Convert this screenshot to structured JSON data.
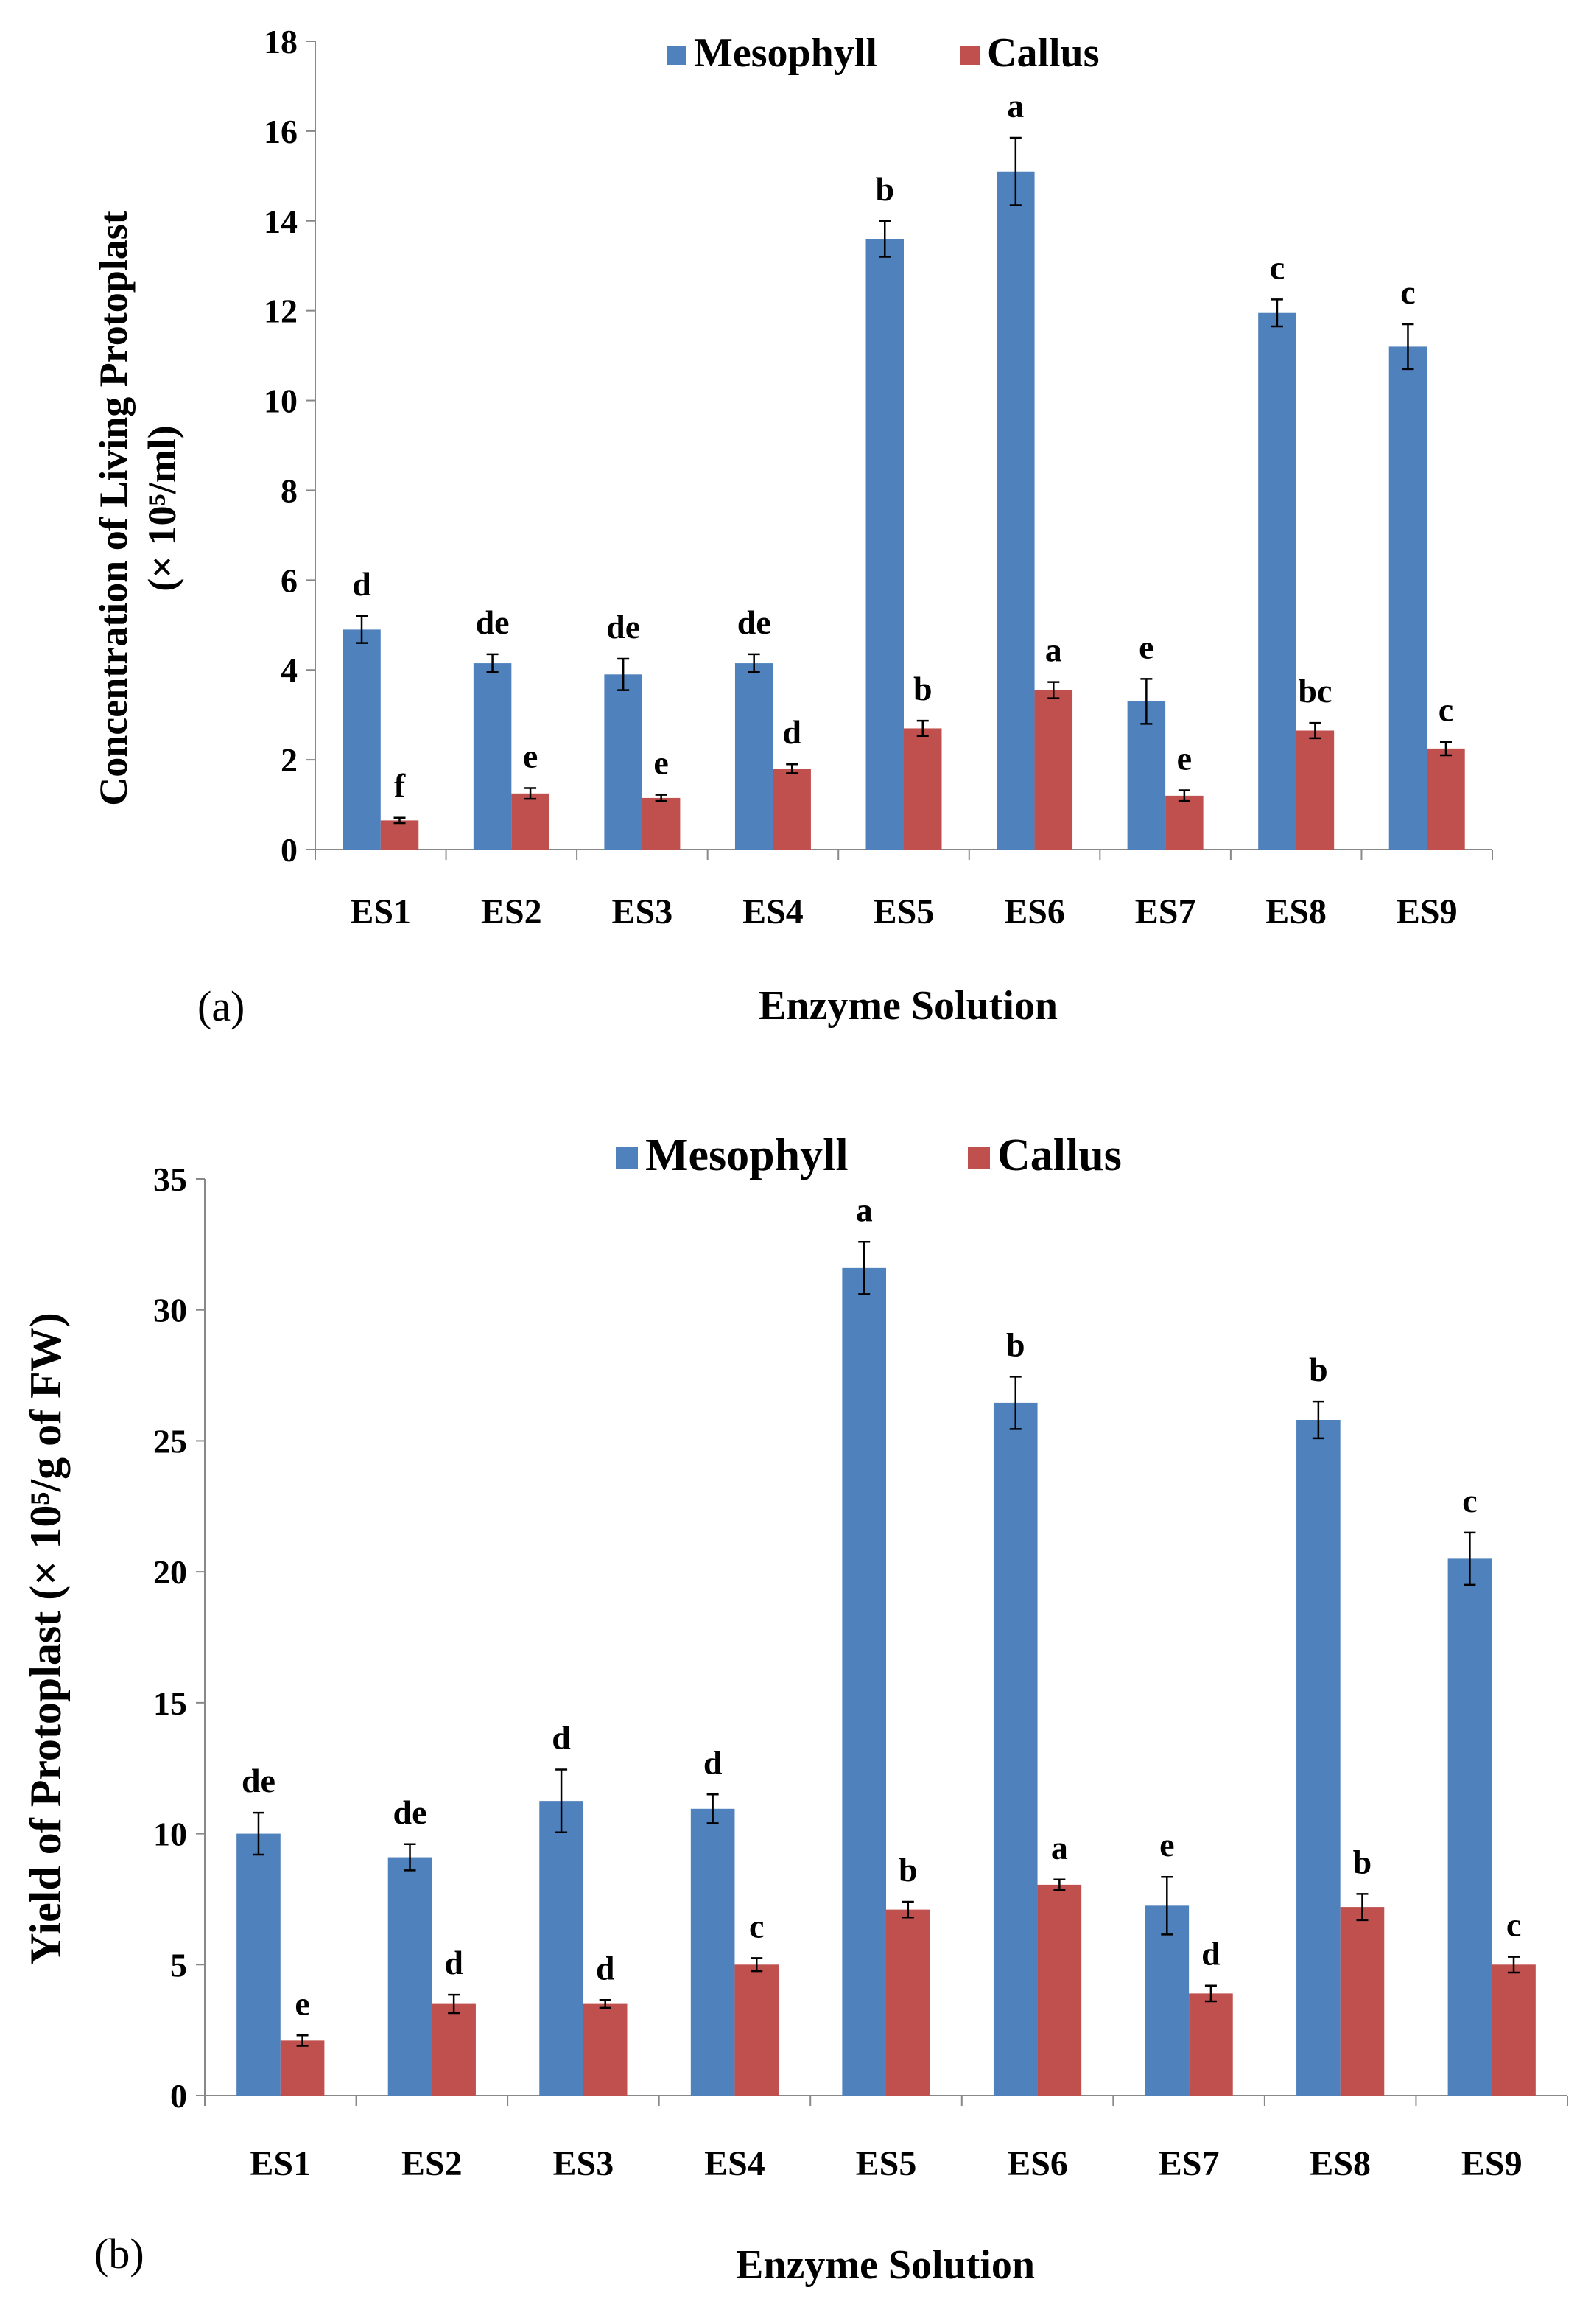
{
  "chart_data": [
    {
      "type": "bar",
      "panel_label": "(a)",
      "categories": [
        "ES1",
        "ES2",
        "ES3",
        "ES4",
        "ES5",
        "ES6",
        "ES7",
        "ES8",
        "ES9"
      ],
      "series": [
        {
          "name": "Mesophyll",
          "color": "#4F81BD",
          "values": [
            4.9,
            4.15,
            3.9,
            4.15,
            13.6,
            15.1,
            3.3,
            11.95,
            11.2
          ],
          "errors": [
            0.3,
            0.2,
            0.35,
            0.2,
            0.4,
            0.75,
            0.5,
            0.3,
            0.5
          ],
          "labels": [
            "d",
            "de",
            "de",
            "de",
            "b",
            "a",
            "e",
            "c",
            "c"
          ]
        },
        {
          "name": "Callus",
          "color": "#C0504D",
          "values": [
            0.65,
            1.25,
            1.15,
            1.8,
            2.7,
            3.55,
            1.2,
            2.65,
            2.25
          ],
          "errors": [
            0.06,
            0.12,
            0.07,
            0.1,
            0.17,
            0.18,
            0.12,
            0.17,
            0.15
          ],
          "labels": [
            "f",
            "e",
            "e",
            "d",
            "b",
            "a",
            "e",
            "bc",
            "c"
          ]
        }
      ],
      "ylim": [
        0,
        18
      ],
      "yticks": [
        0,
        2,
        4,
        6,
        8,
        10,
        12,
        14,
        16,
        18
      ],
      "ylabel_line1": "Concentration of Living Protoplast",
      "ylabel_line2": "(× 10⁵/ml)",
      "xlabel": "Enzyme Solution",
      "legend_position": "top"
    },
    {
      "type": "bar",
      "panel_label": "(b)",
      "categories": [
        "ES1",
        "ES2",
        "ES3",
        "ES4",
        "ES5",
        "ES6",
        "ES7",
        "ES8",
        "ES9"
      ],
      "series": [
        {
          "name": "Mesophyll",
          "color": "#4F81BD",
          "values": [
            10.0,
            9.1,
            11.25,
            10.95,
            31.6,
            26.45,
            7.25,
            25.8,
            20.5
          ],
          "errors": [
            0.8,
            0.5,
            1.2,
            0.55,
            1.0,
            1.0,
            1.1,
            0.7,
            1.0
          ],
          "labels": [
            "de",
            "de",
            "d",
            "d",
            "a",
            "b",
            "e",
            "b",
            "c"
          ]
        },
        {
          "name": "Callus",
          "color": "#C0504D",
          "values": [
            2.1,
            3.5,
            3.5,
            5.0,
            7.1,
            8.05,
            3.9,
            7.2,
            5.0
          ],
          "errors": [
            0.2,
            0.35,
            0.15,
            0.25,
            0.3,
            0.2,
            0.3,
            0.5,
            0.3
          ],
          "labels": [
            "e",
            "d",
            "d",
            "c",
            "b",
            "a",
            "d",
            "b",
            "c"
          ]
        }
      ],
      "ylim": [
        0,
        35
      ],
      "yticks": [
        0,
        5,
        10,
        15,
        20,
        25,
        30,
        35
      ],
      "ylabel": "Yield of Protoplast (× 10⁵/g of FW)",
      "xlabel": "Enzyme Solution",
      "legend_position": "top"
    }
  ]
}
